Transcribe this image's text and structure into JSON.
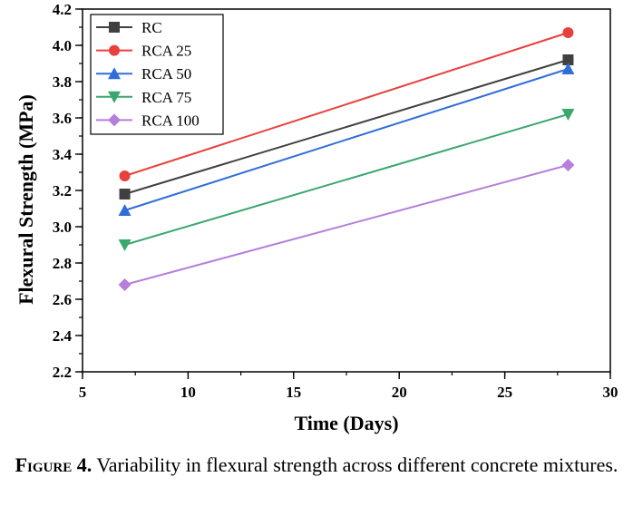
{
  "chart_data": {
    "type": "line",
    "xlabel": "Time (Days)",
    "ylabel": "Flexural Strength (MPa)",
    "xlim": [
      5,
      30
    ],
    "ylim": [
      2.2,
      4.2
    ],
    "xticks": [
      "5",
      "10",
      "15",
      "20",
      "25",
      "30"
    ],
    "yticks": [
      "2.2",
      "2.4",
      "2.6",
      "2.8",
      "3.0",
      "3.2",
      "3.4",
      "3.6",
      "3.8",
      "4.0",
      "4.2"
    ],
    "x": [
      7,
      28
    ],
    "grid": false,
    "legend_position": "top-left",
    "series": [
      {
        "name": "RC",
        "values": [
          3.18,
          3.92
        ],
        "color": "#404040",
        "marker": "square"
      },
      {
        "name": "RCA 25",
        "values": [
          3.28,
          4.07
        ],
        "color": "#e8413c",
        "marker": "circle"
      },
      {
        "name": "RCA 50",
        "values": [
          3.09,
          3.87
        ],
        "color": "#2f6ed9",
        "marker": "triangle-up"
      },
      {
        "name": "RCA 75",
        "values": [
          2.9,
          3.62
        ],
        "color": "#3aa76d",
        "marker": "triangle-down"
      },
      {
        "name": "RCA 100",
        "values": [
          2.68,
          3.34
        ],
        "color": "#b57fdc",
        "marker": "diamond"
      }
    ]
  },
  "caption": {
    "label": "Figure 4.",
    "text": "Variability in flexural strength across different concrete mixtures."
  }
}
